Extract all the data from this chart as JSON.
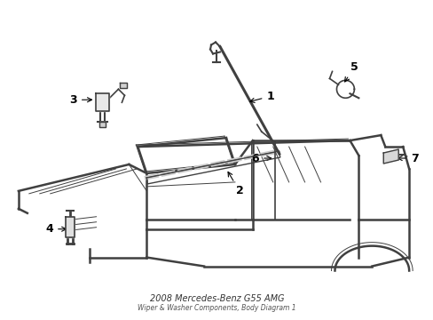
{
  "title": "2008 Mercedes-Benz G55 AMG",
  "subtitle": "Wiper & Washer Components, Body Diagram 1",
  "background_color": "#ffffff",
  "line_color": "#404040",
  "label_color": "#000000",
  "fig_width": 4.89,
  "fig_height": 3.6,
  "dpi": 100,
  "lw_main": 1.3,
  "lw_thin": 0.7,
  "lw_thick": 1.8
}
